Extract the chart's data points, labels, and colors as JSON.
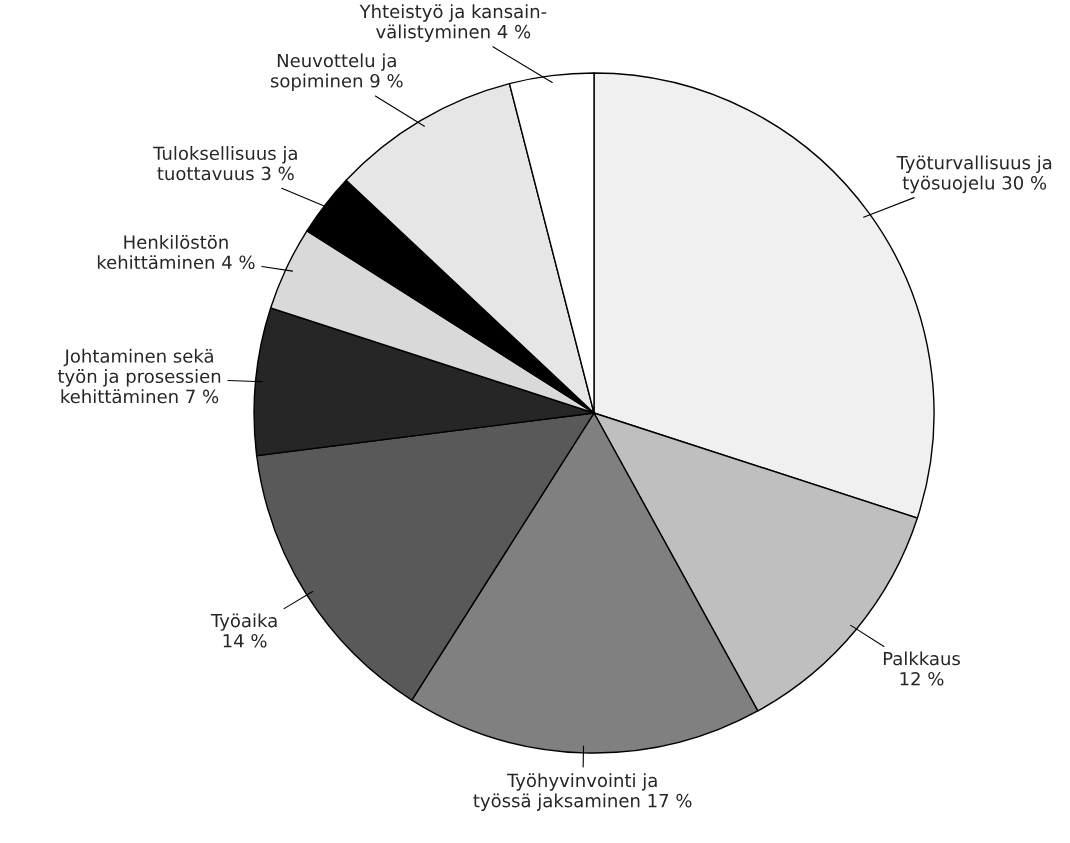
{
  "chart_data": {
    "type": "pie",
    "categories": [
      "Työturvallisuus ja\ntyösuojelu",
      "Palkkaus",
      "Työhyvinvointi ja\ntyössä jaksaminen",
      "Työaika",
      "Johtaminen sekä\ntyön ja prosessien\nkehittäminen",
      "Henkilöstön\nkehittäminen",
      "Tuloksellisuus ja\ntuottavuus",
      "Neuvottelu ja\nsopiminen",
      "Yhteistyö ja kansain-\nvälistyminen"
    ],
    "values": [
      30,
      12,
      17,
      14,
      7,
      4,
      3,
      9,
      4
    ],
    "value_labels": [
      "30 %",
      "12 %",
      "17 %",
      "14 %",
      "7 %",
      "4 %",
      "3 %",
      "9 %",
      "4 %"
    ],
    "colors": [
      "#f0f0f0",
      "#bfbfbf",
      "#808080",
      "#595959",
      "#262626",
      "#d9d9d9",
      "#000000",
      "#e6e6e6",
      "#ffffff"
    ]
  }
}
